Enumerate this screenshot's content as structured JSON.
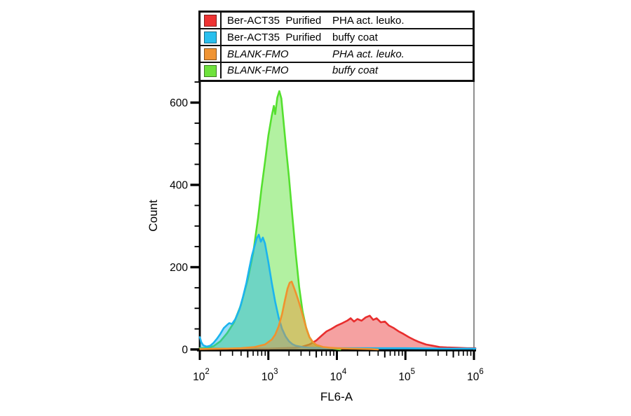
{
  "legend": {
    "rows": [
      {
        "id": "ber-act35-purified-pha",
        "color": "#ee3333",
        "reagent": "Ber-ACT35  Purified",
        "sample": "PHA act. leuko.",
        "italic": false
      },
      {
        "id": "ber-act35-purified-buffy",
        "color": "#29bfee",
        "reagent": "Ber-ACT35  Purified",
        "sample": "buffy coat",
        "italic": false
      },
      {
        "id": "blank-fmo-pha",
        "color": "#f09433",
        "reagent": "BLANK-FMO",
        "sample": "PHA act. leuko.",
        "italic": true
      },
      {
        "id": "blank-fmo-buffy",
        "color": "#6ee23c",
        "reagent": "BLANK-FMO",
        "sample": "buffy coat",
        "italic": true
      }
    ]
  },
  "chart_data": {
    "type": "area",
    "title": "",
    "xlabel": "FL6-A",
    "ylabel": "Count",
    "x_scale": "log10",
    "x_range_log": [
      2,
      6
    ],
    "x_major_tick_exponents": [
      2,
      3,
      4,
      5,
      6
    ],
    "y_range": [
      0,
      650
    ],
    "y_major_ticks": [
      0,
      200,
      400,
      600
    ],
    "y_minor_step": 50,
    "grid": false,
    "legend_position": "top",
    "draw_order": [
      "ber-act35-purified-pha",
      "blank-fmo-buffy",
      "ber-act35-purified-buffy",
      "blank-fmo-pha"
    ],
    "series": [
      {
        "id": "ber-act35-purified-pha",
        "name": "Ber-ACT35 Purified / PHA act. leuko.",
        "color": "#e82e2e",
        "fill_opacity": 0.45,
        "peak": {
          "x": 30000,
          "count": 82
        },
        "points": [
          [
            2.0,
            2
          ],
          [
            2.5,
            2
          ],
          [
            3.0,
            2
          ],
          [
            3.2,
            3
          ],
          [
            3.4,
            4
          ],
          [
            3.5,
            7
          ],
          [
            3.6,
            12
          ],
          [
            3.7,
            22
          ],
          [
            3.78,
            34
          ],
          [
            3.85,
            44
          ],
          [
            3.92,
            50
          ],
          [
            4.0,
            58
          ],
          [
            4.08,
            64
          ],
          [
            4.15,
            70
          ],
          [
            4.2,
            76
          ],
          [
            4.25,
            68
          ],
          [
            4.3,
            74
          ],
          [
            4.36,
            70
          ],
          [
            4.42,
            78
          ],
          [
            4.48,
            82
          ],
          [
            4.53,
            72
          ],
          [
            4.58,
            76
          ],
          [
            4.64,
            66
          ],
          [
            4.7,
            68
          ],
          [
            4.76,
            58
          ],
          [
            4.83,
            52
          ],
          [
            4.9,
            44
          ],
          [
            4.97,
            38
          ],
          [
            5.05,
            30
          ],
          [
            5.12,
            24
          ],
          [
            5.2,
            18
          ],
          [
            5.3,
            12
          ],
          [
            5.4,
            9
          ],
          [
            5.5,
            6
          ],
          [
            5.6,
            5
          ],
          [
            5.75,
            4
          ],
          [
            5.9,
            3
          ],
          [
            6.02,
            3
          ]
        ]
      },
      {
        "id": "blank-fmo-buffy",
        "name": "BLANK-FMO / buffy coat",
        "color": "#55e02f",
        "fill_opacity": 0.45,
        "peak": {
          "x": 1400,
          "count": 628
        },
        "points": [
          [
            2.0,
            3
          ],
          [
            2.1,
            4
          ],
          [
            2.2,
            8
          ],
          [
            2.3,
            20
          ],
          [
            2.4,
            40
          ],
          [
            2.5,
            66
          ],
          [
            2.6,
            108
          ],
          [
            2.7,
            170
          ],
          [
            2.78,
            235
          ],
          [
            2.85,
            320
          ],
          [
            2.9,
            392
          ],
          [
            2.95,
            455
          ],
          [
            3.0,
            520
          ],
          [
            3.05,
            568
          ],
          [
            3.08,
            592
          ],
          [
            3.1,
            572
          ],
          [
            3.13,
            612
          ],
          [
            3.16,
            628
          ],
          [
            3.19,
            610
          ],
          [
            3.22,
            556
          ],
          [
            3.26,
            486
          ],
          [
            3.3,
            420
          ],
          [
            3.35,
            324
          ],
          [
            3.4,
            232
          ],
          [
            3.45,
            152
          ],
          [
            3.5,
            92
          ],
          [
            3.55,
            54
          ],
          [
            3.6,
            30
          ],
          [
            3.65,
            17
          ],
          [
            3.7,
            10
          ],
          [
            3.8,
            5
          ],
          [
            3.9,
            3
          ],
          [
            4.0,
            1
          ],
          [
            4.05,
            0
          ]
        ]
      },
      {
        "id": "ber-act35-purified-buffy",
        "name": "Ber-ACT35 Purified / buffy coat",
        "color": "#1cb4ee",
        "fill_opacity": 0.45,
        "peak": {
          "x": 720,
          "count": 279
        },
        "points": [
          [
            2.0,
            30
          ],
          [
            2.02,
            18
          ],
          [
            2.05,
            10
          ],
          [
            2.1,
            7
          ],
          [
            2.15,
            9
          ],
          [
            2.2,
            16
          ],
          [
            2.25,
            26
          ],
          [
            2.3,
            38
          ],
          [
            2.35,
            52
          ],
          [
            2.4,
            60
          ],
          [
            2.43,
            64
          ],
          [
            2.47,
            62
          ],
          [
            2.52,
            74
          ],
          [
            2.58,
            98
          ],
          [
            2.63,
            128
          ],
          [
            2.68,
            162
          ],
          [
            2.72,
            196
          ],
          [
            2.76,
            228
          ],
          [
            2.8,
            252
          ],
          [
            2.83,
            270
          ],
          [
            2.86,
            279
          ],
          [
            2.89,
            262
          ],
          [
            2.92,
            272
          ],
          [
            2.95,
            258
          ],
          [
            3.0,
            212
          ],
          [
            3.05,
            162
          ],
          [
            3.1,
            116
          ],
          [
            3.15,
            78
          ],
          [
            3.2,
            50
          ],
          [
            3.25,
            32
          ],
          [
            3.3,
            20
          ],
          [
            3.35,
            13
          ],
          [
            3.4,
            9
          ],
          [
            3.5,
            6
          ],
          [
            3.6,
            4
          ],
          [
            3.8,
            3
          ],
          [
            4.2,
            3
          ],
          [
            4.6,
            3
          ],
          [
            5.0,
            3
          ],
          [
            5.5,
            2
          ],
          [
            6.02,
            2
          ]
        ]
      },
      {
        "id": "blank-fmo-pha",
        "name": "BLANK-FMO / PHA act. leuko.",
        "color": "#f0922e",
        "fill_opacity": 0.45,
        "peak": {
          "x": 2100,
          "count": 165
        },
        "points": [
          [
            2.0,
            1
          ],
          [
            2.4,
            2
          ],
          [
            2.6,
            3
          ],
          [
            2.8,
            6
          ],
          [
            2.95,
            12
          ],
          [
            3.05,
            24
          ],
          [
            3.1,
            36
          ],
          [
            3.15,
            56
          ],
          [
            3.2,
            86
          ],
          [
            3.24,
            118
          ],
          [
            3.28,
            148
          ],
          [
            3.31,
            162
          ],
          [
            3.34,
            165
          ],
          [
            3.37,
            152
          ],
          [
            3.4,
            138
          ],
          [
            3.44,
            118
          ],
          [
            3.48,
            96
          ],
          [
            3.52,
            72
          ],
          [
            3.56,
            48
          ],
          [
            3.6,
            30
          ],
          [
            3.65,
            18
          ],
          [
            3.7,
            11
          ],
          [
            3.8,
            6
          ],
          [
            3.9,
            4
          ],
          [
            4.0,
            3
          ],
          [
            4.2,
            2
          ],
          [
            4.5,
            1
          ],
          [
            4.6,
            0
          ]
        ]
      }
    ]
  }
}
